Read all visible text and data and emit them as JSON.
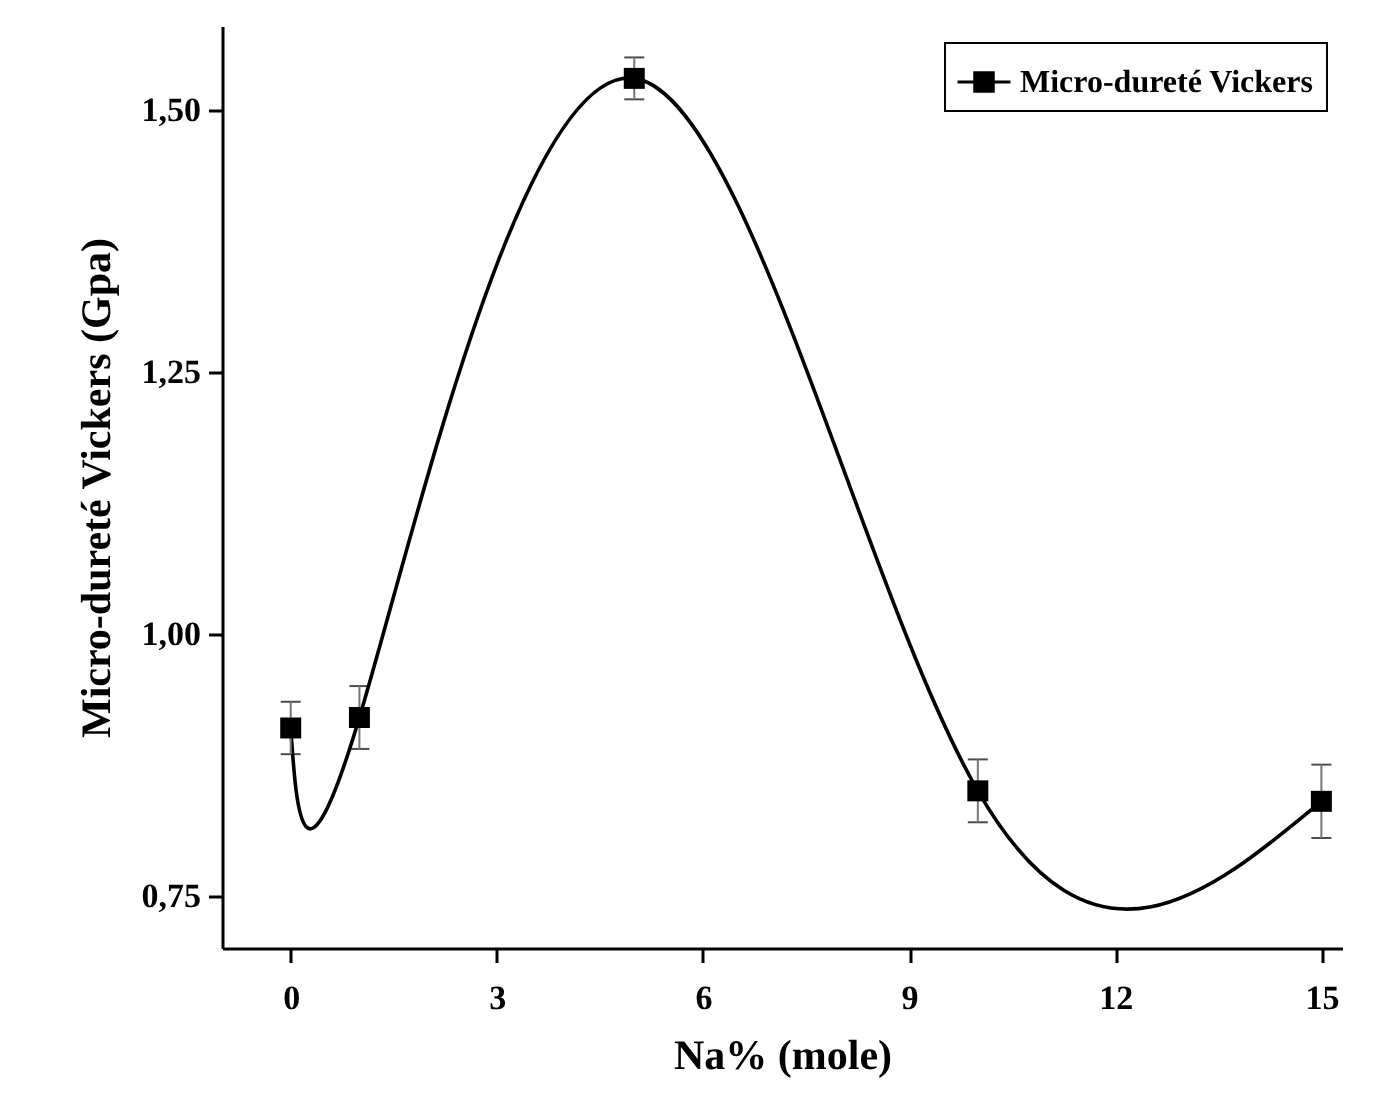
{
  "chart_data": {
    "type": "line",
    "xlabel": "Na% (mole)",
    "ylabel": "Micro-dureté Vickers (Gpa)",
    "xlim": [
      -1,
      15.3
    ],
    "xticks": [
      0,
      3,
      6,
      9,
      12,
      15
    ],
    "ylim": [
      0.7,
      1.58
    ],
    "yticks": [
      {
        "value": 0.75,
        "label": "0,75"
      },
      {
        "value": 1.0,
        "label": "1,00"
      },
      {
        "value": 1.25,
        "label": "1,25"
      },
      {
        "value": 1.5,
        "label": "1,50"
      }
    ],
    "legend": "top right",
    "marker": "square",
    "series": [
      {
        "name": "Micro-dureté Vickers",
        "color": "#000000",
        "x": [
          0,
          1,
          5,
          10,
          15
        ],
        "values": [
          0.91,
          0.92,
          1.53,
          0.85,
          0.84
        ],
        "errors": [
          0.025,
          0.03,
          0.02,
          0.03,
          0.035
        ]
      }
    ]
  }
}
